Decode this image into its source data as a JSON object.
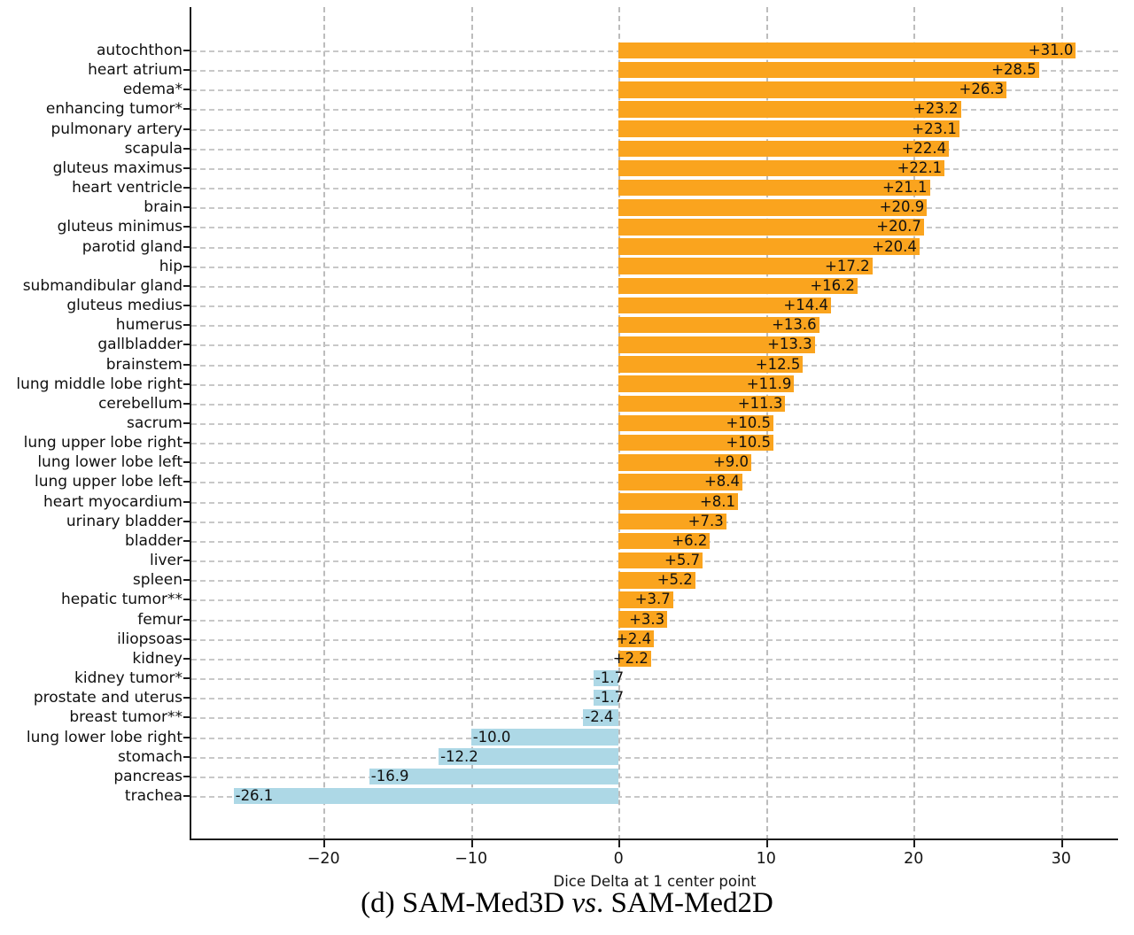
{
  "figure": {
    "caption_prefix": "(d) SAM-Med3D ",
    "caption_italic": "vs",
    "caption_suffix": ". SAM-Med2D"
  },
  "chart_data": {
    "type": "bar",
    "orientation": "horizontal",
    "xlabel": "Dice Delta at 1 center point",
    "ylabel": "",
    "title": "",
    "xlim": [
      -28.96,
      33.86
    ],
    "xticks": [
      -20,
      -10,
      0,
      10,
      20,
      30
    ],
    "xtick_labels": [
      "−20",
      "−10",
      "0",
      "10",
      "20",
      "30"
    ],
    "grid": true,
    "legend": "none",
    "colors": {
      "positive": "#FAA41E",
      "negative": "#ADD8E6"
    },
    "categories": [
      "autochthon",
      "heart atrium",
      "edema*",
      "enhancing tumor*",
      "pulmonary artery",
      "scapula",
      "gluteus maximus",
      "heart ventricle",
      "brain",
      "gluteus minimus",
      "parotid gland",
      "hip",
      "submandibular gland",
      "gluteus medius",
      "humerus",
      "gallbladder",
      "brainstem",
      "lung middle lobe right",
      "cerebellum",
      "sacrum",
      "lung upper lobe right",
      "lung lower lobe left",
      "lung upper lobe left",
      "heart myocardium",
      "urinary bladder",
      "bladder",
      "liver",
      "spleen",
      "hepatic tumor**",
      "femur",
      "iliopsoas",
      "kidney",
      "kidney tumor*",
      "prostate and uterus",
      "breast tumor**",
      "lung lower lobe right",
      "stomach",
      "pancreas",
      "trachea"
    ],
    "values": [
      31.0,
      28.5,
      26.3,
      23.2,
      23.1,
      22.4,
      22.1,
      21.1,
      20.9,
      20.7,
      20.4,
      17.2,
      16.2,
      14.4,
      13.6,
      13.3,
      12.5,
      11.9,
      11.3,
      10.5,
      10.5,
      9.0,
      8.4,
      8.1,
      7.3,
      6.2,
      5.7,
      5.2,
      3.7,
      3.3,
      2.4,
      2.2,
      -1.7,
      -1.7,
      -2.4,
      -10.0,
      -12.2,
      -16.9,
      -26.1
    ],
    "value_labels": [
      "+31.0",
      "+28.5",
      "+26.3",
      "+23.2",
      "+23.1",
      "+22.4",
      "+22.1",
      "+21.1",
      "+20.9",
      "+20.7",
      "+20.4",
      "+17.2",
      "+16.2",
      "+14.4",
      "+13.6",
      "+13.3",
      "+12.5",
      "+11.9",
      "+11.3",
      "+10.5",
      "+10.5",
      "+9.0",
      "+8.4",
      "+8.1",
      "+7.3",
      "+6.2",
      "+5.7",
      "+5.2",
      "+3.7",
      "+3.3",
      "+2.4",
      "+2.2",
      "-1.7",
      "-1.7",
      "-2.4",
      "-10.0",
      "-12.2",
      "-16.9",
      "-26.1"
    ]
  }
}
